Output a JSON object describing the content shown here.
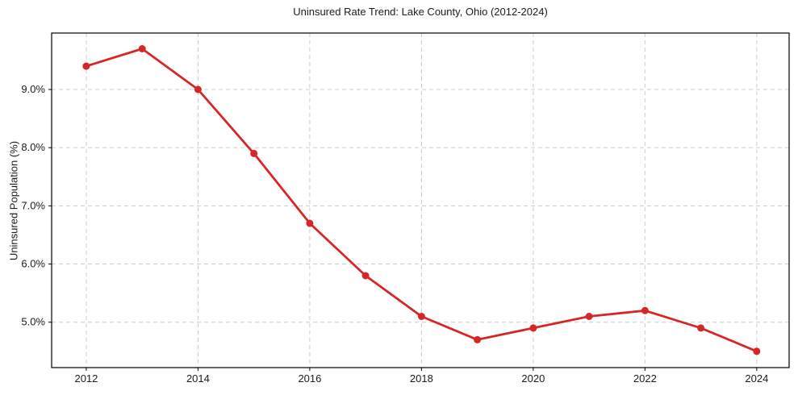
{
  "chart_data": {
    "type": "line",
    "title": "Uninsured Rate Trend: Lake County, Ohio (2012-2024)",
    "xlabel": "",
    "ylabel": "Uninsured Population (%)",
    "x": [
      2012,
      2013,
      2014,
      2015,
      2016,
      2017,
      2018,
      2019,
      2020,
      2021,
      2022,
      2023,
      2024
    ],
    "series": [
      {
        "name": "Uninsured Rate",
        "values": [
          9.4,
          9.7,
          9.0,
          7.9,
          6.7,
          5.8,
          5.1,
          4.7,
          4.9,
          5.1,
          5.2,
          4.9,
          4.5
        ],
        "color": "#d62728"
      }
    ],
    "xlim": [
      2011.38,
      2024.58
    ],
    "ylim": [
      4.22,
      9.97
    ],
    "x_ticks": [
      2012,
      2014,
      2016,
      2018,
      2020,
      2022,
      2024
    ],
    "x_tick_labels": [
      "2012",
      "2014",
      "2016",
      "2018",
      "2020",
      "2022",
      "2024"
    ],
    "y_ticks": [
      5.0,
      6.0,
      7.0,
      8.0,
      9.0
    ],
    "y_tick_labels": [
      "5.0%",
      "6.0%",
      "7.0%",
      "8.0%",
      "9.0%"
    ],
    "grid": true,
    "grid_style": "dashed",
    "legend_position": "none",
    "marker": "circle",
    "colors": {
      "line": "#d62728",
      "marker": "#d62728",
      "grid": "#cccccc",
      "spine": "#000000",
      "text": "#1a1a1a",
      "background": "#ffffff"
    }
  }
}
